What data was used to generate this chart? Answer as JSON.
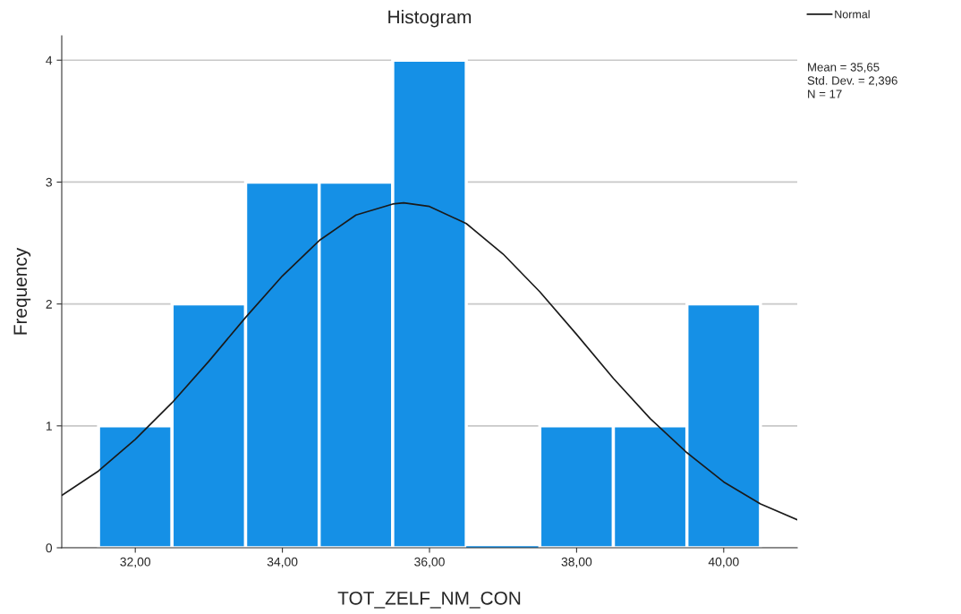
{
  "chart_data": {
    "type": "histogram",
    "title": "Histogram",
    "xlabel": "TOT_ZELF_NM_CON",
    "ylabel": "Frequency",
    "bins": [
      31.5,
      32.5,
      33.5,
      34.5,
      35.5,
      36.5,
      37.5,
      38.5,
      39.5,
      40.5
    ],
    "values": [
      1,
      2,
      3,
      3,
      4,
      0,
      1,
      1,
      2
    ],
    "color": "#1590e6",
    "series": [
      {
        "type": "line",
        "name": "Normal",
        "color": "#1a1a1a",
        "x": [
          31,
          31.5,
          32,
          32.5,
          33,
          33.5,
          34,
          34.5,
          35,
          35.5,
          35.65,
          36,
          36.5,
          37,
          37.5,
          38,
          38.5,
          39,
          39.5,
          40,
          40.5,
          41
        ],
        "values": [
          0.43,
          0.63,
          0.89,
          1.19,
          1.53,
          1.89,
          2.23,
          2.52,
          2.73,
          2.82,
          2.83,
          2.8,
          2.66,
          2.41,
          2.1,
          1.75,
          1.39,
          1.06,
          0.78,
          0.54,
          0.36,
          0.23
        ]
      }
    ],
    "xlim": [
      31,
      41
    ],
    "xticks": [
      {
        "value": 32,
        "label": "32,00"
      },
      {
        "value": 34,
        "label": "34,00"
      },
      {
        "value": 36,
        "label": "36,00"
      },
      {
        "value": 38,
        "label": "38,00"
      },
      {
        "value": 40,
        "label": "40,00"
      }
    ],
    "ylim": [
      0,
      4.2
    ],
    "yticks": [
      0,
      1,
      2,
      3,
      4
    ],
    "grid": "y",
    "legend": "top right",
    "annotations": [
      "Mean = 35,65",
      "Std. Dev. = 2,396",
      "N = 17"
    ]
  }
}
